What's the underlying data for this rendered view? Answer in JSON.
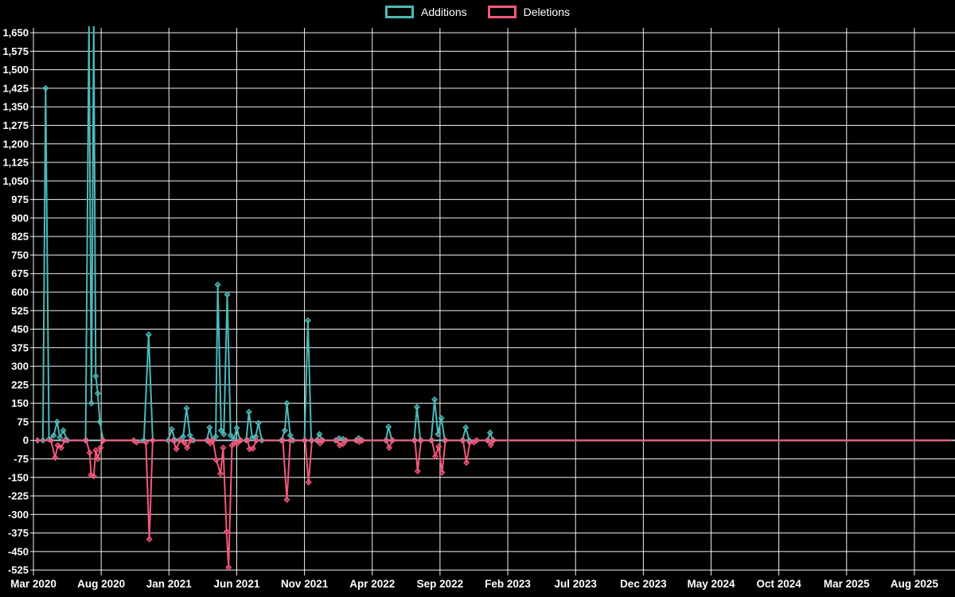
{
  "legend": {
    "additions_label": "Additions",
    "deletions_label": "Deletions"
  },
  "colors": {
    "background": "#000000",
    "grid": "#ffffff",
    "text": "#ffffff",
    "additions": "#4cb9b9",
    "deletions": "#f4587b",
    "zero_line": "#a3c2c7"
  },
  "chart_data": {
    "type": "line",
    "title": "",
    "xlabel": "",
    "ylabel": "",
    "grid": true,
    "legend_position": "top-center",
    "x_unit": "months since Mar 2020 (points are ~weekly)",
    "xlim": [
      -0.3,
      67.8
    ],
    "ylim": [
      -525,
      1650
    ],
    "y_ticks": [
      {
        "value": 1650,
        "label": "1,650"
      },
      {
        "value": 1575,
        "label": "1,575"
      },
      {
        "value": 1500,
        "label": "1,500"
      },
      {
        "value": 1425,
        "label": "1,425"
      },
      {
        "value": 1350,
        "label": "1,350"
      },
      {
        "value": 1275,
        "label": "1,275"
      },
      {
        "value": 1200,
        "label": "1,200"
      },
      {
        "value": 1125,
        "label": "1,125"
      },
      {
        "value": 1050,
        "label": "1,050"
      },
      {
        "value": 975,
        "label": "975"
      },
      {
        "value": 900,
        "label": "900"
      },
      {
        "value": 825,
        "label": "825"
      },
      {
        "value": 750,
        "label": "750"
      },
      {
        "value": 675,
        "label": "675"
      },
      {
        "value": 600,
        "label": "600"
      },
      {
        "value": 525,
        "label": "525"
      },
      {
        "value": 450,
        "label": "450"
      },
      {
        "value": 375,
        "label": "375"
      },
      {
        "value": 300,
        "label": "300"
      },
      {
        "value": 225,
        "label": "225"
      },
      {
        "value": 150,
        "label": "150"
      },
      {
        "value": 75,
        "label": "75"
      },
      {
        "value": 0,
        "label": "0"
      },
      {
        "value": -75,
        "label": "-75"
      },
      {
        "value": -150,
        "label": "-150"
      },
      {
        "value": -225,
        "label": "-225"
      },
      {
        "value": -300,
        "label": "-300"
      },
      {
        "value": -375,
        "label": "-375"
      },
      {
        "value": -450,
        "label": "-450"
      },
      {
        "value": -525,
        "label": "-525"
      }
    ],
    "x_ticks": [
      {
        "m": 0,
        "label": "Mar 2020"
      },
      {
        "m": 5,
        "label": "Aug 2020"
      },
      {
        "m": 10,
        "label": "Jan 2021"
      },
      {
        "m": 15,
        "label": "Jun 2021"
      },
      {
        "m": 20,
        "label": "Nov 2021"
      },
      {
        "m": 25,
        "label": "Apr 2022"
      },
      {
        "m": 30,
        "label": "Sep 2022"
      },
      {
        "m": 35,
        "label": "Feb 2023"
      },
      {
        "m": 40,
        "label": "Jul 2023"
      },
      {
        "m": 45,
        "label": "Dec 2023"
      },
      {
        "m": 50,
        "label": "May 2024"
      },
      {
        "m": 55,
        "label": "Oct 2024"
      },
      {
        "m": 60,
        "label": "Mar 2025"
      },
      {
        "m": 65,
        "label": "Aug 2025"
      }
    ],
    "series": [
      {
        "name": "Additions",
        "color_key": "additions",
        "points": [
          [
            0.29,
            0
          ],
          [
            0.7,
            0
          ],
          [
            0.9,
            1425
          ],
          [
            1.15,
            5
          ],
          [
            1.5,
            20
          ],
          [
            1.75,
            75
          ],
          [
            1.95,
            12
          ],
          [
            2.2,
            40
          ],
          [
            2.5,
            0
          ],
          [
            3.85,
            0
          ],
          [
            4.1,
            1700
          ],
          [
            4.28,
            150
          ],
          [
            4.45,
            1700
          ],
          [
            4.6,
            260
          ],
          [
            4.75,
            190
          ],
          [
            4.9,
            75
          ],
          [
            5.15,
            0
          ],
          [
            8.15,
            0
          ],
          [
            8.5,
            428
          ],
          [
            8.8,
            0
          ],
          [
            9.95,
            0
          ],
          [
            10.2,
            45
          ],
          [
            10.45,
            0
          ],
          [
            11.05,
            15
          ],
          [
            11.3,
            130
          ],
          [
            11.55,
            20
          ],
          [
            11.8,
            0
          ],
          [
            12.8,
            0
          ],
          [
            13.0,
            52
          ],
          [
            13.2,
            0
          ],
          [
            13.45,
            15
          ],
          [
            13.6,
            630
          ],
          [
            13.85,
            40
          ],
          [
            14.05,
            25
          ],
          [
            14.3,
            590
          ],
          [
            14.55,
            20
          ],
          [
            14.8,
            5
          ],
          [
            15.0,
            50
          ],
          [
            15.25,
            0
          ],
          [
            15.7,
            0
          ],
          [
            15.9,
            115
          ],
          [
            16.15,
            10
          ],
          [
            16.4,
            15
          ],
          [
            16.6,
            70
          ],
          [
            16.85,
            0
          ],
          [
            18.3,
            0
          ],
          [
            18.55,
            40
          ],
          [
            18.7,
            150
          ],
          [
            18.95,
            20
          ],
          [
            19.15,
            0
          ],
          [
            20.0,
            0
          ],
          [
            20.25,
            485
          ],
          [
            20.5,
            0
          ],
          [
            20.9,
            0
          ],
          [
            21.1,
            25
          ],
          [
            21.3,
            0
          ],
          [
            22.3,
            0
          ],
          [
            22.55,
            8
          ],
          [
            22.85,
            5
          ],
          [
            23.05,
            0
          ],
          [
            23.8,
            0
          ],
          [
            24.0,
            8
          ],
          [
            24.2,
            0
          ],
          [
            26.0,
            0
          ],
          [
            26.2,
            55
          ],
          [
            26.45,
            0
          ],
          [
            28.1,
            0
          ],
          [
            28.3,
            135
          ],
          [
            28.55,
            0
          ],
          [
            29.35,
            0
          ],
          [
            29.6,
            165
          ],
          [
            29.85,
            25
          ],
          [
            30.1,
            90
          ],
          [
            30.35,
            0
          ],
          [
            31.65,
            0
          ],
          [
            31.9,
            52
          ],
          [
            32.15,
            0
          ],
          [
            33.5,
            0
          ],
          [
            33.7,
            31
          ],
          [
            33.9,
            0
          ],
          [
            67.7,
            0
          ]
        ]
      },
      {
        "name": "Deletions",
        "color_key": "deletions",
        "points": [
          [
            0.29,
            0
          ],
          [
            1.3,
            0
          ],
          [
            1.6,
            -70
          ],
          [
            1.8,
            -20
          ],
          [
            2.05,
            -30
          ],
          [
            2.3,
            0
          ],
          [
            3.9,
            0
          ],
          [
            4.15,
            -50
          ],
          [
            4.25,
            -140
          ],
          [
            4.45,
            -145
          ],
          [
            4.6,
            -40
          ],
          [
            4.75,
            -75
          ],
          [
            4.95,
            -30
          ],
          [
            5.15,
            0
          ],
          [
            7.4,
            0
          ],
          [
            7.6,
            -8
          ],
          [
            8.3,
            -8
          ],
          [
            8.55,
            -400
          ],
          [
            8.8,
            0
          ],
          [
            10.3,
            0
          ],
          [
            10.55,
            -35
          ],
          [
            10.8,
            0
          ],
          [
            11.15,
            -10
          ],
          [
            11.35,
            -30
          ],
          [
            11.6,
            0
          ],
          [
            12.9,
            0
          ],
          [
            13.05,
            -12
          ],
          [
            13.25,
            0
          ],
          [
            13.5,
            -80
          ],
          [
            13.8,
            -135
          ],
          [
            14.0,
            -30
          ],
          [
            14.25,
            -370
          ],
          [
            14.4,
            -515
          ],
          [
            14.65,
            -20
          ],
          [
            14.85,
            -10
          ],
          [
            15.05,
            -12
          ],
          [
            15.3,
            0
          ],
          [
            15.8,
            0
          ],
          [
            15.95,
            -35
          ],
          [
            16.2,
            -33
          ],
          [
            16.45,
            0
          ],
          [
            18.4,
            0
          ],
          [
            18.7,
            -240
          ],
          [
            18.95,
            0
          ],
          [
            20.05,
            0
          ],
          [
            20.3,
            -170
          ],
          [
            20.55,
            0
          ],
          [
            21.0,
            0
          ],
          [
            21.15,
            -12
          ],
          [
            21.35,
            0
          ],
          [
            22.4,
            0
          ],
          [
            22.6,
            -20
          ],
          [
            22.85,
            -14
          ],
          [
            23.05,
            0
          ],
          [
            23.85,
            0
          ],
          [
            24.05,
            -6
          ],
          [
            24.25,
            0
          ],
          [
            26.05,
            0
          ],
          [
            26.25,
            -30
          ],
          [
            26.5,
            0
          ],
          [
            28.15,
            0
          ],
          [
            28.35,
            -125
          ],
          [
            28.6,
            0
          ],
          [
            29.4,
            0
          ],
          [
            29.65,
            -65
          ],
          [
            29.9,
            -25
          ],
          [
            30.15,
            -130
          ],
          [
            30.4,
            0
          ],
          [
            31.7,
            0
          ],
          [
            31.95,
            -90
          ],
          [
            32.2,
            -8
          ],
          [
            32.5,
            -8
          ],
          [
            32.7,
            0
          ],
          [
            33.55,
            0
          ],
          [
            33.75,
            -19
          ],
          [
            33.95,
            0
          ],
          [
            67.7,
            0
          ]
        ]
      }
    ]
  }
}
